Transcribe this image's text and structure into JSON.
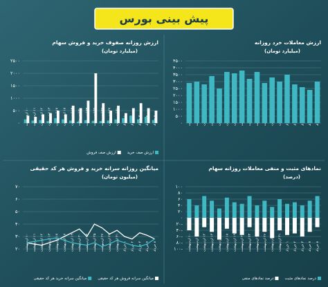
{
  "title": "پیش بینی بورس",
  "chart_data": [
    {
      "type": "bar",
      "title": "ارزش روزانه صفوف خرید و فروش سهام",
      "subtitle": "(میلیارد تومان)",
      "categories": [
        "۱۰ اردیبهشت",
        "۱۱ اردیبهشت",
        "۱۲ اردیبهشت",
        "۱۳ اردیبهشت",
        "۱۷ اردیبهشت",
        "۱۸ اردیبهشت",
        "۱۹ اردیبهشت",
        "۲۰ اردیبهشت",
        "۲۴ اردیبهشت",
        "۲۵ اردیبهشت",
        "۲۶ اردیبهشت",
        "۲۷ اردیبهشت",
        "۳۱ اردیبهشت",
        "۱ خرداد",
        "۲ خرداد",
        "۳ خرداد",
        "۷ خرداد",
        "۸ خرداد"
      ],
      "series": [
        {
          "name": "ارزش صف خرید",
          "color": "#3fb8c4",
          "values": [
            150,
            100,
            120,
            80,
            200,
            150,
            100,
            60,
            120,
            90,
            80,
            100,
            150,
            200,
            300,
            150,
            250,
            120
          ]
        },
        {
          "name": "ارزش صف فروش",
          "color": "#ffffff",
          "values": [
            300,
            250,
            350,
            400,
            500,
            350,
            700,
            600,
            900,
            2000,
            800,
            500,
            700,
            400,
            600,
            800,
            600,
            500
          ]
        }
      ],
      "ylim": [
        0,
        2500
      ],
      "yticks": [
        {
          "value": 0,
          "label": "۰"
        },
        {
          "value": 500,
          "label": "۵۰۰"
        },
        {
          "value": 1000,
          "label": "۱۰۰۰"
        },
        {
          "value": 1500,
          "label": "۱۵۰۰"
        },
        {
          "value": 2000,
          "label": "۲۰۰۰"
        },
        {
          "value": 2500,
          "label": "۲۵۰۰"
        }
      ],
      "grid": true
    },
    {
      "type": "bar",
      "title": "ارزش معاملات خرد روزانه",
      "subtitle": "(میلیارد تومان)",
      "categories": [
        "۱۰ اردیبهشت",
        "۱۱ اردیبهشت",
        "۱۲ اردیبهشت",
        "۱۳ اردیبهشت",
        "۱۷ اردیبهشت",
        "۱۸ اردیبهشت",
        "۱۹ اردیبهشت",
        "۲۰ اردیبهشت",
        "۲۴ اردیبهشت",
        "۲۵ اردیبهشت",
        "۲۶ اردیبهشت",
        "۲۷ اردیبهشت",
        "۳۱ اردیبهشت",
        "۱ خرداد",
        "۲ خرداد",
        "۳ خرداد",
        "۷ خرداد",
        "۸ خرداد"
      ],
      "series": [
        {
          "color": "#3fb8c4",
          "values": [
            2900,
            3000,
            2800,
            3400,
            2500,
            3700,
            3600,
            3800,
            3200,
            3700,
            2900,
            3300,
            3000,
            3500,
            2800,
            2600,
            2400,
            3000
          ]
        }
      ],
      "ylim": [
        0,
        4500
      ],
      "yticks": [
        {
          "value": 0,
          "label": "۰"
        },
        {
          "value": 500,
          "label": "۵۰۰"
        },
        {
          "value": 1000,
          "label": "۱۰۰۰"
        },
        {
          "value": 1500,
          "label": "۱۵۰۰"
        },
        {
          "value": 2000,
          "label": "۲۰۰۰"
        },
        {
          "value": 2500,
          "label": "۲۵۰۰"
        },
        {
          "value": 3000,
          "label": "۳۰۰۰"
        },
        {
          "value": 3500,
          "label": "۳۵۰۰"
        },
        {
          "value": 4000,
          "label": "۴۰۰۰"
        },
        {
          "value": 4500,
          "label": "۴۵۰۰"
        }
      ],
      "grid": true
    },
    {
      "type": "line",
      "title": "میانگین روزانه سرانه خرید و فروش هر کد حقیقی",
      "subtitle": "(میلیون تومان)",
      "categories": [
        "۱۰ اردیبهشت",
        "۱۱ اردیبهشت",
        "۱۲ اردیبهشت",
        "۱۳ اردیبهشت",
        "۱۷ اردیبهشت",
        "۱۸ اردیبهشت",
        "۱۹ اردیبهشت",
        "۲۰ اردیبهشت",
        "۲۴ اردیبهشت",
        "۲۵ اردیبهشت",
        "۲۶ اردیبهشت",
        "۲۷ اردیبهشت",
        "۳۱ اردیبهشت",
        "۱ خرداد",
        "۲ خرداد",
        "۳ خرداد",
        "۷ خرداد",
        "۸ خرداد"
      ],
      "series": [
        {
          "name": "میانگین سرانه فروش هر کد حقیقی",
          "color": "#ffffff",
          "values": [
            25,
            24,
            23,
            25,
            27,
            30,
            33,
            36,
            30,
            40,
            37,
            32,
            35,
            30,
            28,
            33,
            31,
            28
          ]
        },
        {
          "name": "میانگین سرانه خرید هر کد حقیقی",
          "color": "#3fb8c4",
          "values": [
            25,
            26,
            27,
            28,
            29,
            27,
            25,
            24,
            23,
            25,
            22,
            24,
            27,
            25,
            23,
            22,
            24,
            28
          ]
        }
      ],
      "ylim": [
        20,
        70
      ],
      "yticks": [
        {
          "value": 20,
          "label": "۲۰"
        },
        {
          "value": 30,
          "label": "۳۰"
        },
        {
          "value": 40,
          "label": "۴۰"
        },
        {
          "value": 50,
          "label": "۵۰"
        },
        {
          "value": 60,
          "label": "۶۰"
        },
        {
          "value": 70,
          "label": "۷۰"
        }
      ],
      "grid": true
    },
    {
      "type": "bar",
      "stacked": true,
      "title": "نمادهای مثبت و منفی معاملات روزانه سهام",
      "subtitle": "(درصد)",
      "categories": [
        "۱۰ اردیبهشت",
        "۱۱ اردیبهشت",
        "۱۲ اردیبهشت",
        "۱۳ اردیبهشت",
        "۱۷ اردیبهشت",
        "۱۸ اردیبهشت",
        "۱۹ اردیبهشت",
        "۲۰ اردیبهشت",
        "۲۴ اردیبهشت",
        "۲۵ اردیبهشت",
        "۲۶ اردیبهشت",
        "۲۷ اردیبهشت",
        "۳۱ اردیبهشت",
        "۱ خرداد",
        "۲ خرداد",
        "۳ خرداد",
        "۷ خرداد",
        "۸ خرداد"
      ],
      "series": [
        {
          "name": "درصد نمادهای مثبت",
          "color": "#3fb8c4",
          "values": [
            60,
            40,
            70,
            55,
            30,
            65,
            50,
            45,
            70,
            40,
            55,
            35,
            60,
            45,
            50,
            40,
            55,
            70
          ]
        },
        {
          "name": "درصد نمادهای منفی",
          "color": "#ffffff",
          "values": [
            -40,
            -60,
            -30,
            -45,
            -70,
            -35,
            -50,
            -55,
            -30,
            -60,
            -45,
            -65,
            -40,
            -55,
            -50,
            -60,
            -45,
            -30
          ]
        }
      ],
      "ylim": [
        -100,
        100
      ],
      "yticks": [
        {
          "value": -100,
          "label": "۱۰۰-"
        },
        {
          "value": -80,
          "label": "۸۰-"
        },
        {
          "value": -60,
          "label": "۶۰-"
        },
        {
          "value": -40,
          "label": "۴۰-"
        },
        {
          "value": -20,
          "label": "۲۰-"
        },
        {
          "value": 0,
          "label": "۰"
        },
        {
          "value": 20,
          "label": "۲۰"
        },
        {
          "value": 40,
          "label": "۴۰"
        },
        {
          "value": 60,
          "label": "۶۰"
        },
        {
          "value": 80,
          "label": "۸۰"
        },
        {
          "value": 100,
          "label": "۱۰۰"
        }
      ],
      "grid": true
    }
  ]
}
